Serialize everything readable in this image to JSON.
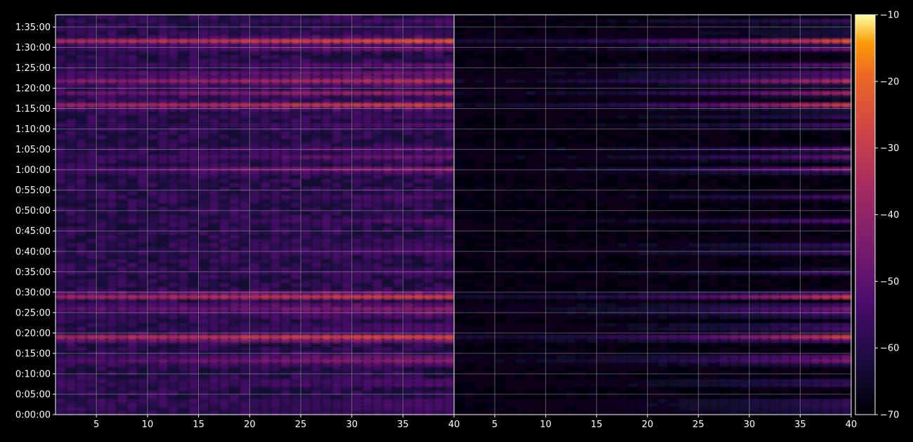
{
  "chart_data": {
    "type": "heatmap",
    "panels": [
      {
        "name": "",
        "xlim": [
          1,
          40
        ],
        "x_ticks": [
          5,
          10,
          15,
          20,
          25,
          30,
          35,
          40
        ],
        "x_tick_labels": [
          "5",
          "10",
          "15",
          "20",
          "25",
          "30",
          "35",
          "40"
        ],
        "pattern": "strong"
      },
      {
        "name": "",
        "xlim": [
          1,
          40
        ],
        "x_ticks": [
          5,
          10,
          15,
          20,
          25,
          30,
          35,
          40
        ],
        "x_tick_labels": [
          "5",
          "10",
          "15",
          "20",
          "25",
          "30",
          "35",
          "40"
        ],
        "pattern": "weak"
      }
    ],
    "y_range_seconds": [
      0,
      5880
    ],
    "y_ticks": [
      0,
      300,
      600,
      900,
      1200,
      1500,
      1800,
      2100,
      2400,
      2700,
      3000,
      3300,
      3600,
      3900,
      4200,
      4500,
      4800,
      5100,
      5400,
      5700
    ],
    "y_tick_labels": [
      "0:00:00",
      "0:05:00",
      "0:10:00",
      "0:15:00",
      "0:20:00",
      "0:25:00",
      "0:30:00",
      "0:35:00",
      "0:40:00",
      "0:45:00",
      "0:50:00",
      "0:55:00",
      "1:00:00",
      "1:05:00",
      "1:10:00",
      "1:15:00",
      "1:20:00",
      "1:25:00",
      "1:30:00",
      "1:35:00"
    ],
    "colorbar": {
      "range": [
        -70,
        -10
      ],
      "ticks": [
        -70,
        -60,
        -50,
        -40,
        -30,
        -20,
        -10
      ],
      "tick_labels": [
        "−70",
        "−60",
        "−50",
        "−40",
        "−30",
        "−20",
        "−10"
      ],
      "colormap": "inferno"
    },
    "bands_seconds": [
      {
        "t": 60,
        "level": -52
      },
      {
        "t": 120,
        "level": -55
      },
      {
        "t": 180,
        "level": -50
      },
      {
        "t": 470,
        "level": -48
      },
      {
        "t": 780,
        "level": -40
      },
      {
        "t": 840,
        "level": -45
      },
      {
        "t": 1130,
        "level": -22
      },
      {
        "t": 1250,
        "level": -50
      },
      {
        "t": 1310,
        "level": -52
      },
      {
        "t": 1480,
        "level": -45
      },
      {
        "t": 1580,
        "level": -38
      },
      {
        "t": 1750,
        "level": -25
      },
      {
        "t": 2100,
        "level": -52
      },
      {
        "t": 2400,
        "level": -50
      },
      {
        "t": 2500,
        "level": -55
      },
      {
        "t": 2850,
        "level": -50
      },
      {
        "t": 3200,
        "level": -52
      },
      {
        "t": 3600,
        "level": -40
      },
      {
        "t": 3780,
        "level": -45
      },
      {
        "t": 3900,
        "level": -48
      },
      {
        "t": 4250,
        "level": -50
      },
      {
        "t": 4400,
        "level": -52
      },
      {
        "t": 4550,
        "level": -28
      },
      {
        "t": 4730,
        "level": -38
      },
      {
        "t": 4900,
        "level": -32
      },
      {
        "t": 5000,
        "level": -40
      },
      {
        "t": 5140,
        "level": -48
      },
      {
        "t": 5390,
        "level": -45
      },
      {
        "t": 5500,
        "level": -25
      },
      {
        "t": 5640,
        "level": -55
      },
      {
        "t": 5780,
        "level": -52
      }
    ],
    "grid": true,
    "background": "#000000"
  }
}
